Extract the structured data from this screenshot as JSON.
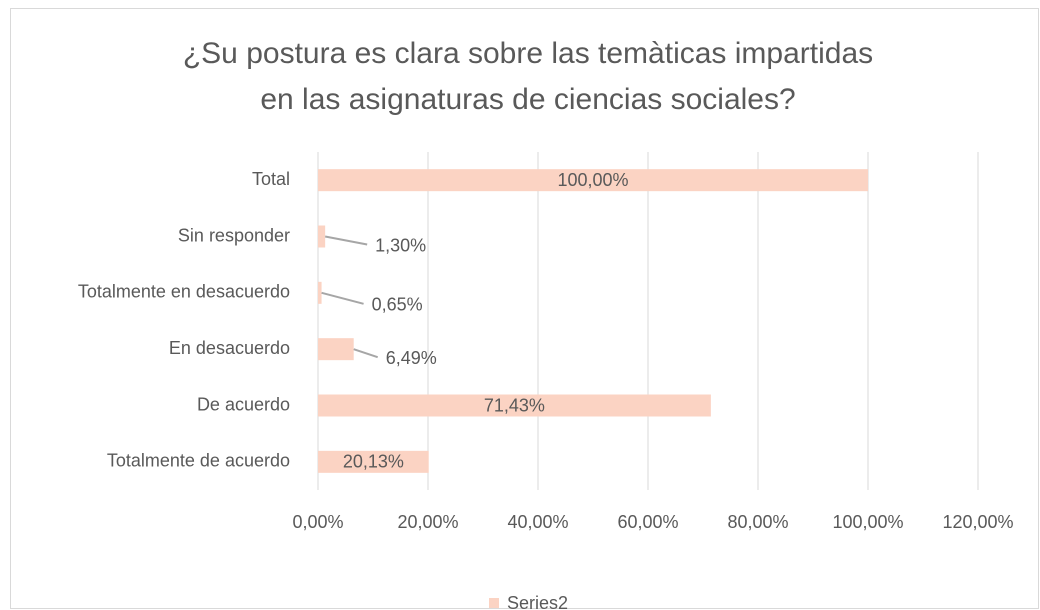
{
  "chart_data": {
    "type": "bar",
    "orientation": "horizontal",
    "title": [
      "¿Su postura es clara sobre las temàticas impartidas",
      "en las asignaturas de ciencias sociales?"
    ],
    "categories": [
      "Total",
      "Sin responder",
      "Totalmente en desacuerdo",
      "En desacuerdo",
      "De acuerdo",
      "Totalmente de acuerdo"
    ],
    "series": [
      {
        "name": "Series2",
        "color": "#fbd3c3",
        "values": [
          100,
          1.3,
          0.65,
          6.49,
          71.43,
          20.13
        ],
        "value_labels": [
          "100,00%",
          "1,30%",
          "0,65%",
          "6,49%",
          "71,43%",
          "20,13%"
        ]
      }
    ],
    "xlim": [
      0,
      120
    ],
    "xticks": [
      {
        "value": 0,
        "label": "0,00%"
      },
      {
        "value": 20,
        "label": "20,00%"
      },
      {
        "value": 40,
        "label": "40,00%"
      },
      {
        "value": 60,
        "label": "60,00%"
      },
      {
        "value": 80,
        "label": "80,00%"
      },
      {
        "value": 100,
        "label": "100,00%"
      },
      {
        "value": 120,
        "label": "120,00%"
      }
    ],
    "grid": true,
    "legend": "bottom"
  }
}
